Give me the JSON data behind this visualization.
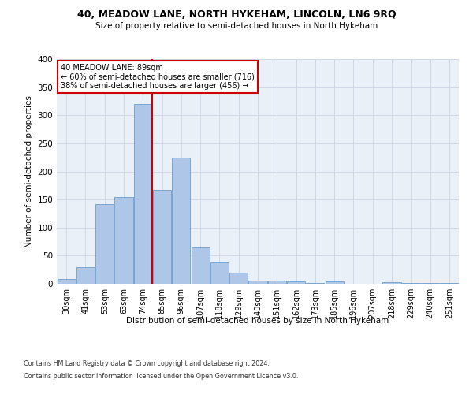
{
  "title1": "40, MEADOW LANE, NORTH HYKEHAM, LINCOLN, LN6 9RQ",
  "title2": "Size of property relative to semi-detached houses in North Hykeham",
  "xlabel": "Distribution of semi-detached houses by size in North Hykeham",
  "ylabel": "Number of semi-detached properties",
  "categories": [
    "30sqm",
    "41sqm",
    "53sqm",
    "63sqm",
    "74sqm",
    "85sqm",
    "96sqm",
    "107sqm",
    "118sqm",
    "129sqm",
    "140sqm",
    "151sqm",
    "162sqm",
    "173sqm",
    "185sqm",
    "196sqm",
    "207sqm",
    "218sqm",
    "229sqm",
    "240sqm",
    "251sqm"
  ],
  "values": [
    8,
    30,
    142,
    154,
    320,
    167,
    225,
    65,
    38,
    20,
    6,
    5,
    4,
    2,
    4,
    0,
    0,
    3,
    2,
    2,
    1
  ],
  "bar_color": "#aec6e8",
  "bar_edge_color": "#5a8fc2",
  "vline_x_index": 5,
  "vline_label": "40 MEADOW LANE: 89sqm",
  "annotation_smaller": "← 60% of semi-detached houses are smaller (716)",
  "annotation_larger": "38% of semi-detached houses are larger (456) →",
  "annotation_box_color": "#ffffff",
  "annotation_box_edge": "#cc0000",
  "vline_color": "#cc0000",
  "grid_color": "#d0d8e8",
  "bg_color": "#eaf0f8",
  "ylim": [
    0,
    400
  ],
  "yticks": [
    0,
    50,
    100,
    150,
    200,
    250,
    300,
    350,
    400
  ],
  "footnote1": "Contains HM Land Registry data © Crown copyright and database right 2024.",
  "footnote2": "Contains public sector information licensed under the Open Government Licence v3.0."
}
